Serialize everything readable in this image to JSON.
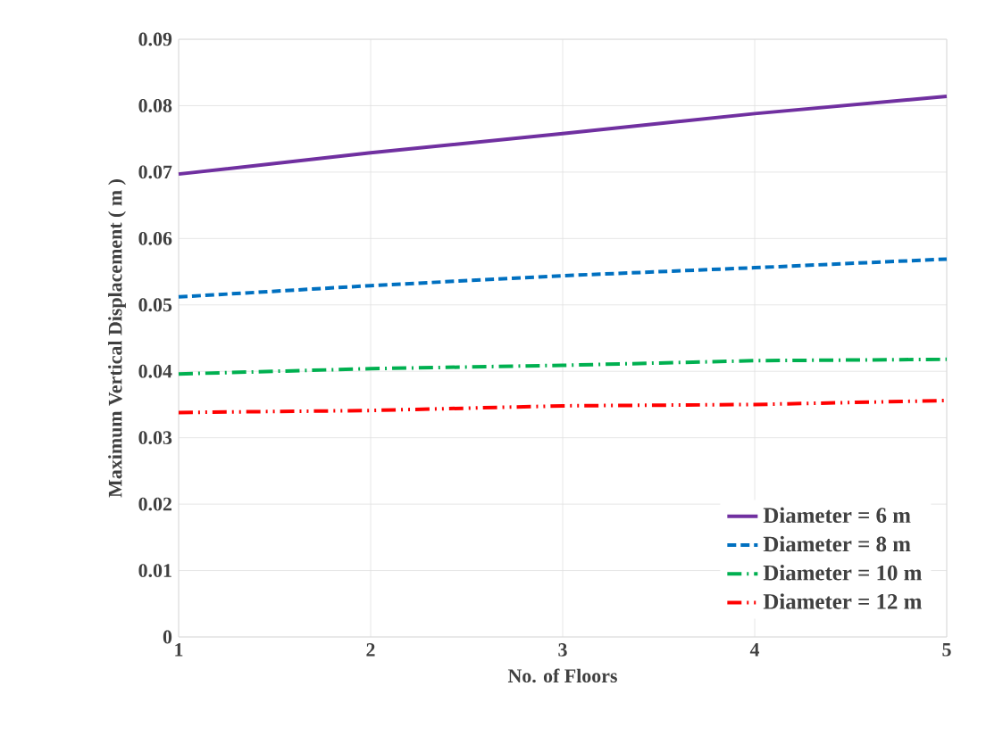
{
  "chart_data": {
    "type": "line",
    "xlabel": "No. of Floors",
    "ylabel": "Maximum Vertical Displacement ( m )",
    "x": [
      1,
      2,
      3,
      4,
      5
    ],
    "series": [
      {
        "name": "Diameter = 6 m",
        "color": "#7030a0",
        "line_style": "solid",
        "values": [
          0.0697,
          0.0729,
          0.0758,
          0.0788,
          0.0814
        ]
      },
      {
        "name": "Diameter = 8 m",
        "color": "#0070c0",
        "line_style": "dashed",
        "values": [
          0.0512,
          0.0529,
          0.0544,
          0.0556,
          0.0569
        ]
      },
      {
        "name": "Diameter = 10 m",
        "color": "#00b050",
        "line_style": "dashdot",
        "values": [
          0.0396,
          0.0404,
          0.0409,
          0.0416,
          0.0418
        ]
      },
      {
        "name": "Diameter = 12 m",
        "color": "#ff0000",
        "line_style": "dashdotdot",
        "values": [
          0.0338,
          0.0341,
          0.0348,
          0.035,
          0.0356
        ]
      }
    ],
    "xlim": [
      1,
      5
    ],
    "xticks": [
      1,
      2,
      3,
      4,
      5
    ],
    "ylim": [
      0,
      0.09
    ],
    "yticks": [
      0,
      0.01,
      0.02,
      0.03,
      0.04,
      0.05,
      0.06,
      0.07,
      0.08,
      0.09
    ],
    "grid": true,
    "legend": "bottom right",
    "marker": "none"
  }
}
